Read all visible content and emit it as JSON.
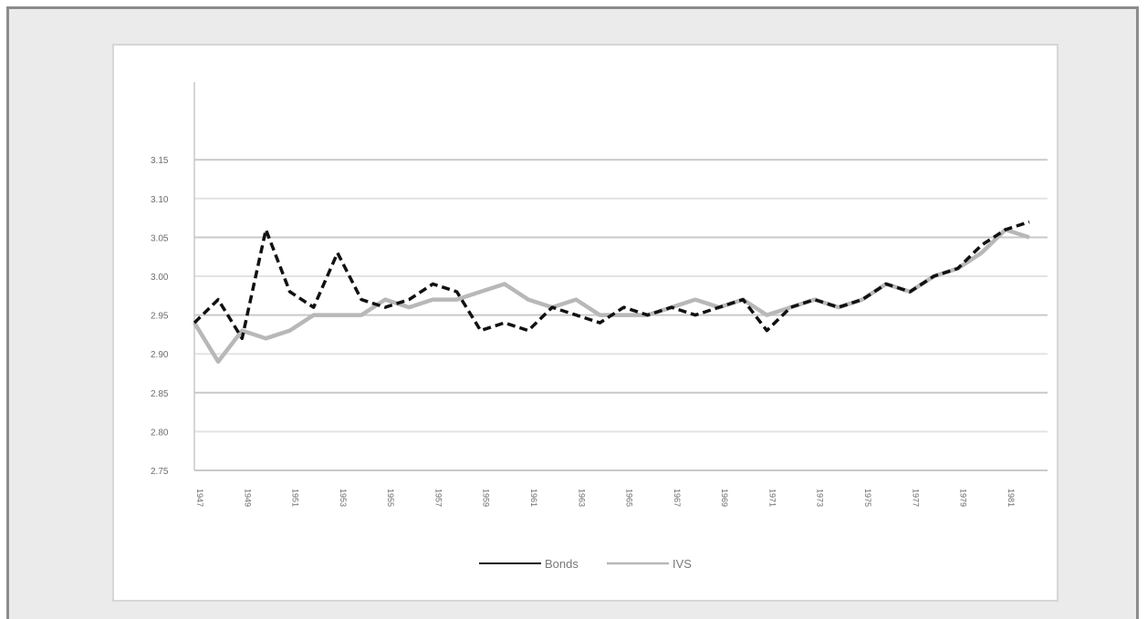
{
  "chart_data": {
    "type": "line",
    "title": "",
    "xlabel": "",
    "ylabel": "",
    "ylim": [
      2.75,
      3.25
    ],
    "yticks": [
      "2.75",
      "2.80",
      "2.85",
      "2.90",
      "2.95",
      "3.00",
      "3.05",
      "3.10",
      "3.15"
    ],
    "xtick_labels": [
      "1947",
      "1949",
      "1951",
      "1953",
      "1955",
      "1957",
      "1959",
      "1961",
      "1963",
      "1965",
      "1967",
      "1969",
      "1971",
      "1973",
      "1975",
      "1977",
      "1979",
      "1981"
    ],
    "grid": true,
    "legend_position": "bottom-center",
    "x": [
      1947,
      1948,
      1949,
      1950,
      1951,
      1952,
      1953,
      1954,
      1955,
      1956,
      1957,
      1958,
      1959,
      1960,
      1961,
      1962,
      1963,
      1964,
      1965,
      1966,
      1967,
      1968,
      1969,
      1970,
      1971,
      1972,
      1973,
      1974,
      1975,
      1976,
      1977,
      1978,
      1979,
      1980,
      1981,
      1982
    ],
    "series": [
      {
        "name": "Bonds",
        "style": "dashed",
        "color": "#111111",
        "values": [
          2.94,
          2.97,
          2.92,
          3.06,
          2.98,
          2.96,
          3.03,
          2.97,
          2.96,
          2.97,
          2.99,
          2.98,
          2.93,
          2.94,
          2.93,
          2.96,
          2.95,
          2.94,
          2.96,
          2.95,
          2.96,
          2.95,
          2.96,
          2.97,
          2.93,
          2.96,
          2.97,
          2.96,
          2.97,
          2.99,
          2.98,
          3.0,
          3.01,
          3.04,
          3.06,
          3.07
        ]
      },
      {
        "name": "IVS",
        "style": "solid",
        "color": "#b8b8b8",
        "values": [
          2.94,
          2.89,
          2.93,
          2.92,
          2.93,
          2.95,
          2.95,
          2.95,
          2.97,
          2.96,
          2.97,
          2.97,
          2.98,
          2.99,
          2.97,
          2.96,
          2.97,
          2.95,
          2.95,
          2.95,
          2.96,
          2.97,
          2.96,
          2.97,
          2.95,
          2.96,
          2.97,
          2.96,
          2.97,
          2.99,
          2.98,
          3.0,
          3.01,
          3.03,
          3.06,
          3.05
        ]
      }
    ]
  }
}
